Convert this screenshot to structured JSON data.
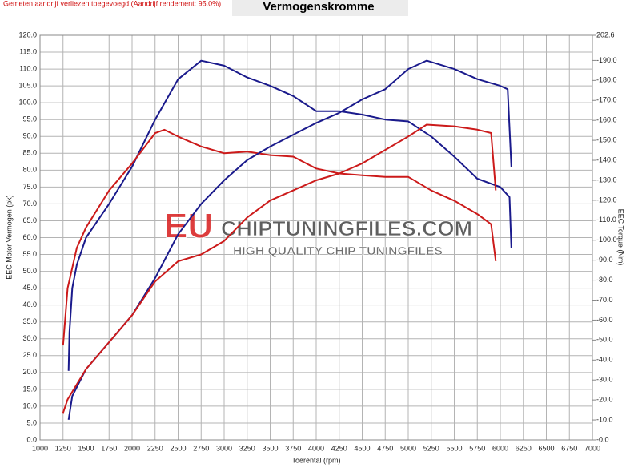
{
  "chart_data": {
    "type": "line",
    "title": "Vermogenskromme",
    "note": "Gemeten aandrijf verliezen toegevoegd!(Aandrijf rendement: 95.0%)",
    "x_label": "Toerental (rpm)",
    "y_label": "EEC Motor Vermogen (pk)",
    "y2_label": "EEC Torque (Nm)",
    "watermark": {
      "brand": "EU",
      "site": "CHIPTUNINGFILES.COM",
      "tagline": "HIGH QUALITY CHIP TUNINGFILES"
    },
    "grid": true,
    "xlim": [
      1000,
      7000
    ],
    "xticks": [
      1000,
      1250,
      1500,
      1750,
      2000,
      2250,
      2500,
      2750,
      3000,
      3250,
      3500,
      3750,
      4000,
      4250,
      4500,
      4750,
      5000,
      5250,
      5500,
      5750,
      6000,
      6250,
      6500,
      6750,
      7000
    ],
    "ylim": [
      0,
      120
    ],
    "yticks": [
      {
        "value": 0,
        "label": "0.0"
      },
      {
        "value": 5,
        "label": "5.0"
      },
      {
        "value": 10,
        "label": "10.0"
      },
      {
        "value": 15,
        "label": "15.0"
      },
      {
        "value": 20,
        "label": "20.0"
      },
      {
        "value": 25,
        "label": "25.0"
      },
      {
        "value": 30,
        "label": "30.0"
      },
      {
        "value": 35,
        "label": "35.0"
      },
      {
        "value": 40,
        "label": "40.0"
      },
      {
        "value": 45,
        "label": "45.0"
      },
      {
        "value": 50,
        "label": "50.0"
      },
      {
        "value": 55,
        "label": "55.0"
      },
      {
        "value": 60,
        "label": "60.0"
      },
      {
        "value": 65,
        "label": "65.0"
      },
      {
        "value": 70,
        "label": "70.0"
      },
      {
        "value": 75,
        "label": "75.0"
      },
      {
        "value": 80,
        "label": "80.0"
      },
      {
        "value": 85,
        "label": "85.0"
      },
      {
        "value": 90,
        "label": "90.0"
      },
      {
        "value": 95,
        "label": "95.0"
      },
      {
        "value": 100,
        "label": "100.0"
      },
      {
        "value": 105,
        "label": "105.0"
      },
      {
        "value": 110,
        "label": "110.0"
      },
      {
        "value": 115,
        "label": "115.0"
      },
      {
        "value": 120,
        "label": "120.0"
      }
    ],
    "y2lim": [
      0,
      202.6
    ],
    "y2ticks": [
      {
        "value": 0,
        "label": "-0.0"
      },
      {
        "value": 10,
        "label": "-10.0"
      },
      {
        "value": 20,
        "label": "-20.0"
      },
      {
        "value": 30,
        "label": "-30.0"
      },
      {
        "value": 40,
        "label": "-40.0"
      },
      {
        "value": 50,
        "label": "-50.0"
      },
      {
        "value": 60,
        "label": "-60.0"
      },
      {
        "value": 70,
        "label": "-70.0"
      },
      {
        "value": 80,
        "label": "-80.0"
      },
      {
        "value": 90,
        "label": "-90.0"
      },
      {
        "value": 100,
        "label": "-100.0"
      },
      {
        "value": 110,
        "label": "-110.0"
      },
      {
        "value": 120,
        "label": "-120.0"
      },
      {
        "value": 130,
        "label": "-130.0"
      },
      {
        "value": 140,
        "label": "-140.0"
      },
      {
        "value": 150,
        "label": "-150.0"
      },
      {
        "value": 160,
        "label": "-160.0"
      },
      {
        "value": 170,
        "label": "-170.0"
      },
      {
        "value": 180,
        "label": "-180.0"
      },
      {
        "value": 190,
        "label": "-190.0"
      },
      202.6
    ],
    "series": [
      {
        "color": "#1a1a8c",
        "axis": "y2",
        "x": [
          1310,
          1320,
          1350,
          1400,
          1500,
          1750,
          2000,
          2250,
          2500,
          2750,
          3000,
          3250,
          3500,
          3750,
          4000,
          4250,
          4500,
          4750,
          5000,
          5250,
          5500,
          5750,
          6000,
          6100,
          6120
        ],
        "values": [
          34.6,
          54,
          76,
          87.8,
          101.3,
          118.2,
          136.8,
          160.4,
          180.6,
          189.9,
          187.4,
          181.5,
          177.3,
          172.2,
          164.6,
          164.6,
          162.9,
          160.4,
          159.5,
          151.9,
          141.8,
          130.8,
          126.6,
          121.6,
          96.2
        ]
      },
      {
        "color": "#cc1a1a",
        "axis": "y2",
        "x": [
          1250,
          1300,
          1400,
          1500,
          1750,
          2000,
          2250,
          2350,
          2500,
          2750,
          3000,
          3250,
          3500,
          3750,
          4000,
          4250,
          4500,
          4750,
          5000,
          5250,
          5500,
          5750,
          5900,
          5950
        ],
        "values": [
          47.3,
          76,
          96.2,
          106.4,
          124.9,
          138.4,
          153.6,
          155.3,
          151.9,
          146.9,
          143.5,
          144.3,
          142.6,
          141.8,
          135.9,
          133.4,
          132.5,
          131.7,
          131.7,
          124.9,
          119.8,
          113.1,
          108,
          89.5
        ]
      },
      {
        "color": "#1a1a8c",
        "axis": "y",
        "x": [
          1310,
          1350,
          1500,
          1750,
          2000,
          2250,
          2500,
          2750,
          3000,
          3250,
          3500,
          3750,
          4000,
          4250,
          4500,
          4750,
          5000,
          5200,
          5500,
          5750,
          6000,
          6080,
          6120
        ],
        "values": [
          6,
          13,
          21,
          29,
          37,
          48,
          61,
          70,
          77,
          83,
          87,
          90.5,
          94,
          97,
          101,
          104,
          110,
          112.5,
          110,
          107,
          105,
          104,
          81
        ]
      },
      {
        "color": "#cc1a1a",
        "axis": "y",
        "x": [
          1250,
          1300,
          1500,
          1750,
          2000,
          2250,
          2500,
          2750,
          3000,
          3250,
          3500,
          3750,
          4000,
          4250,
          4500,
          4750,
          5000,
          5200,
          5500,
          5750,
          5900,
          5950
        ],
        "values": [
          8,
          12,
          21,
          29,
          37,
          47,
          53,
          55,
          59,
          66,
          71,
          74,
          77,
          79,
          82,
          86,
          90,
          93.5,
          93,
          92,
          91,
          74
        ]
      }
    ]
  }
}
